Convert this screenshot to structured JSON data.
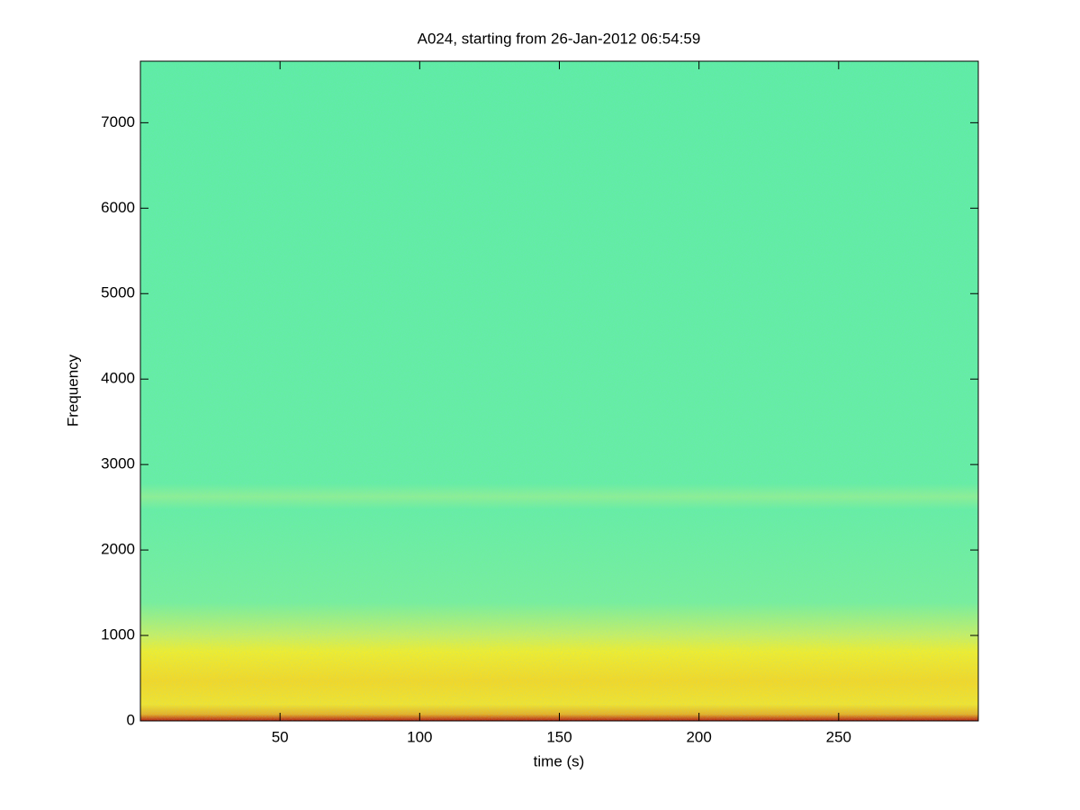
{
  "chart_data": {
    "type": "spectrogram",
    "title": "A024, starting from 26-Jan-2012 06:54:59",
    "x_label": "time (s)",
    "y_label": "Frequency",
    "xlim": [
      0,
      300
    ],
    "xticks": [
      50,
      100,
      150,
      200,
      250
    ],
    "ylim": [
      0,
      7720
    ],
    "yticks": [
      0,
      1000,
      2000,
      3000,
      4000,
      5000,
      6000,
      7000
    ],
    "grid": false
  }
}
